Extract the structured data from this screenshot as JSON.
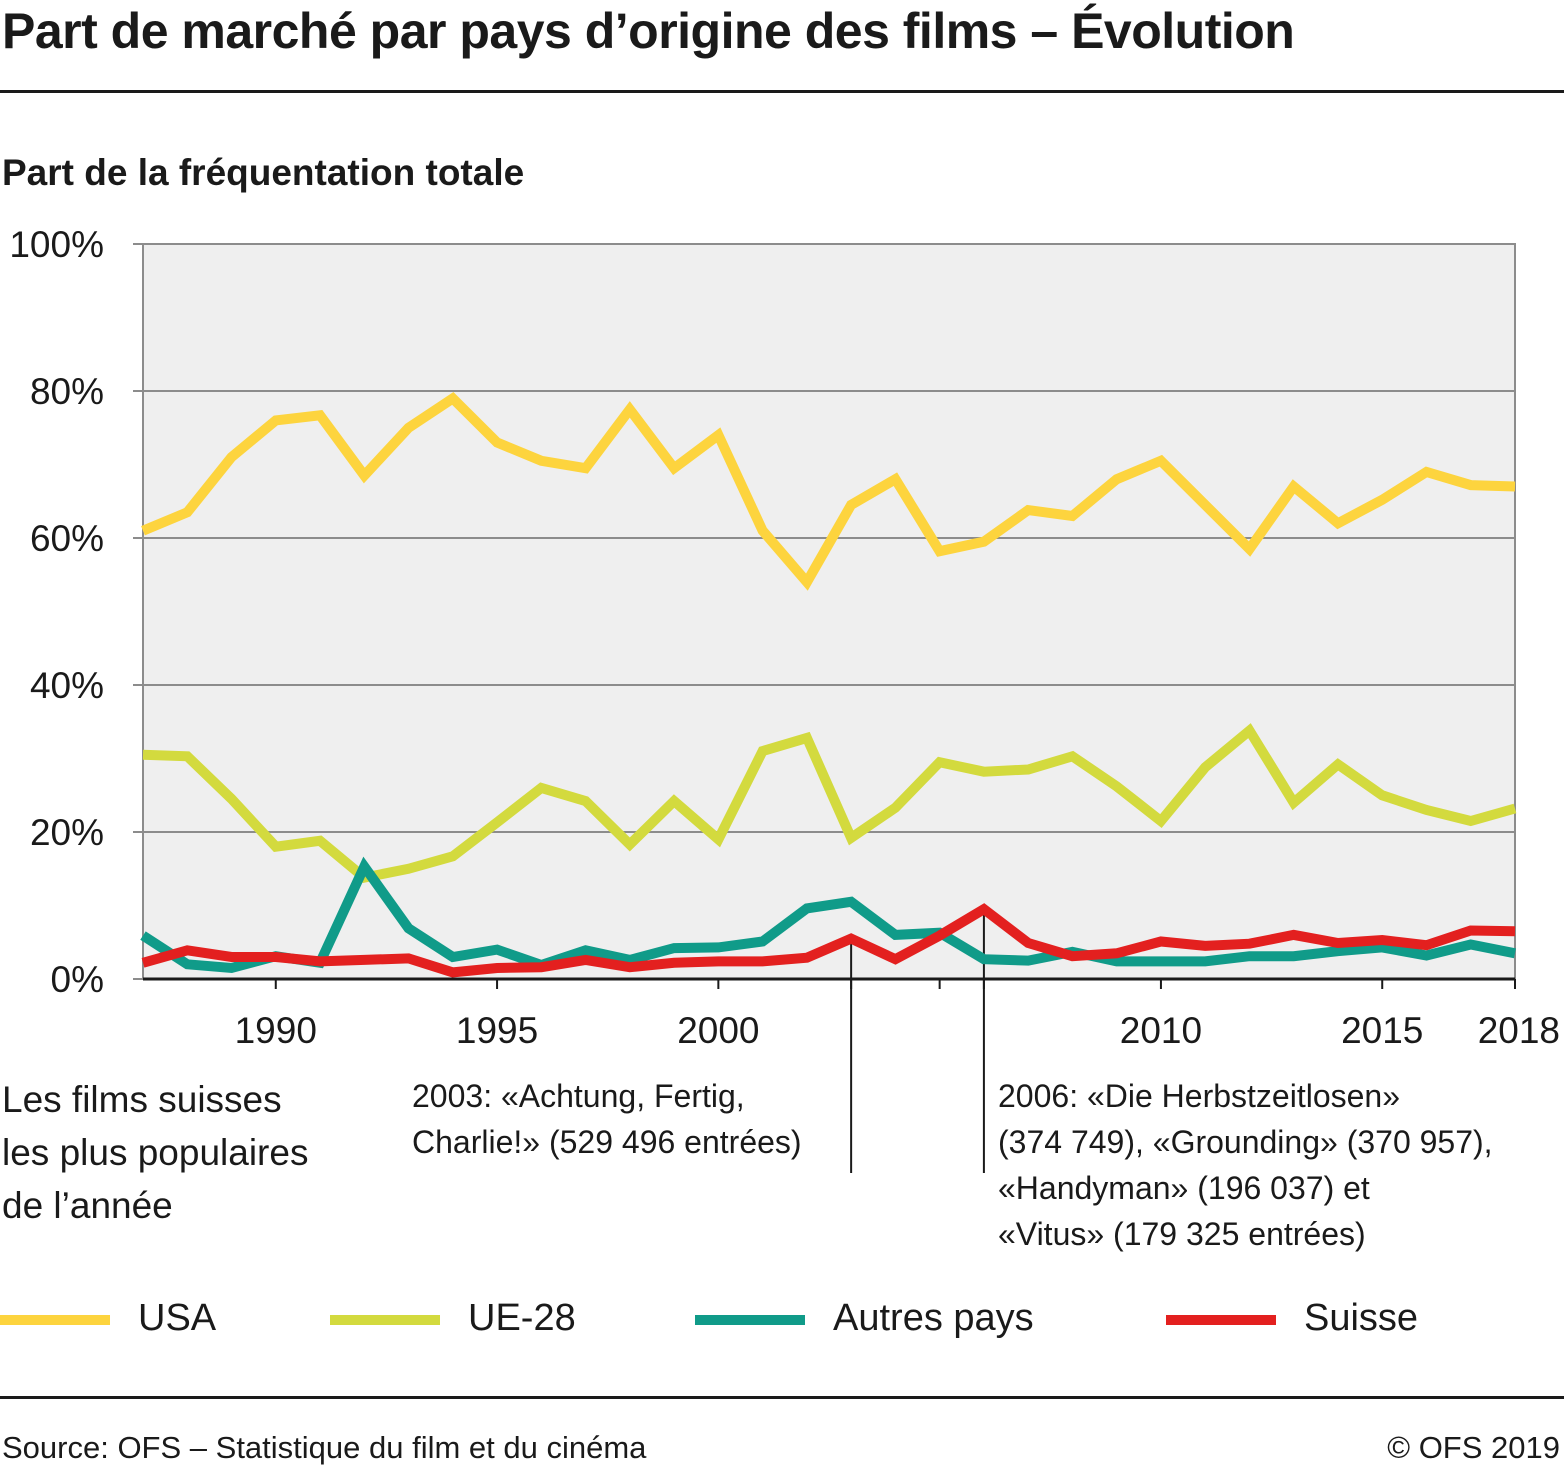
{
  "header": {
    "title": "Part de marché par pays d’origine des films – Évolution",
    "subtitle": "Part de la fréquentation totale"
  },
  "annotations": {
    "left_note_lines": [
      "Les films suisses",
      "les plus populaires",
      "de l’année"
    ],
    "a2003_lines": [
      "2003: «Achtung, Fertig,",
      "Charlie!» (529 496 entrées)"
    ],
    "a2006_lines": [
      "2006: «Die Herbstzeitlosen»",
      "(374 749), «Grounding» (370 957),",
      "«Handyman» (196 037) et",
      "«Vitus»  (179 325 entrées)"
    ]
  },
  "legend": [
    {
      "label": "USA",
      "color": "#fdd43e"
    },
    {
      "label": "UE-28",
      "color": "#d3da3e"
    },
    {
      "label": "Autres pays",
      "color": "#109b89"
    },
    {
      "label": "Suisse",
      "color": "#e3201f"
    }
  ],
  "footer": {
    "source": "Source: OFS – Statistique du film et du cinéma",
    "copyright": "© OFS 2019"
  },
  "chart_data": {
    "type": "line",
    "title": "Part de marché par pays d’origine des films – Évolution",
    "ylabel": "Part de la fréquentation totale",
    "x": [
      1987,
      1988,
      1989,
      1990,
      1991,
      1992,
      1993,
      1994,
      1995,
      1996,
      1997,
      1998,
      1999,
      2000,
      2001,
      2002,
      2003,
      2004,
      2005,
      2006,
      2007,
      2008,
      2009,
      2010,
      2011,
      2012,
      2013,
      2014,
      2015,
      2016,
      2017,
      2018
    ],
    "xlim": [
      1987,
      2018
    ],
    "ylim": [
      0,
      100
    ],
    "y_ticks": [
      0,
      20,
      40,
      60,
      80,
      100
    ],
    "y_tick_labels": [
      "0%",
      "20%",
      "40%",
      "60%",
      "80%",
      "100%"
    ],
    "x_tick_labels": [
      {
        "x": 1990,
        "label": "1990"
      },
      {
        "x": 1995,
        "label": "1995"
      },
      {
        "x": 2000,
        "label": "2000"
      },
      {
        "x": 2010,
        "label": "2010"
      },
      {
        "x": 2015,
        "label": "2015"
      },
      {
        "x": 2018,
        "label": "2018"
      }
    ],
    "minor_ticks": [
      2003,
      2005,
      2006
    ],
    "annotation_years": [
      2003,
      2006
    ],
    "grid": true,
    "legend_position": "bottom",
    "series": [
      {
        "name": "USA",
        "color": "#fdd43e",
        "values": [
          61,
          63.5,
          71,
          76,
          76.7,
          68.5,
          75,
          79,
          73,
          70.5,
          69.5,
          77.5,
          69.5,
          74,
          61,
          54,
          64.5,
          68,
          58.2,
          59.5,
          63.8,
          63,
          68,
          70.5,
          64.5,
          58.5,
          67,
          62,
          65.2,
          69,
          67.2,
          67
        ]
      },
      {
        "name": "UE-28",
        "color": "#d3da3e",
        "values": [
          30.5,
          30.3,
          24.5,
          18,
          18.8,
          13.8,
          15,
          16.7,
          21.3,
          26,
          24.2,
          18.3,
          24.2,
          19,
          31,
          32.8,
          19.2,
          23.3,
          29.5,
          28.2,
          28.5,
          30.3,
          26.2,
          21.5,
          28.8,
          33.8,
          24,
          29.2,
          25,
          23,
          21.5,
          23.2
        ]
      },
      {
        "name": "Autres pays",
        "color": "#109b89",
        "values": [
          5.9,
          2,
          1.5,
          3.1,
          2.2,
          15.3,
          6.9,
          3,
          4,
          1.9,
          3.9,
          2.6,
          4.2,
          4.3,
          5.1,
          9.6,
          10.5,
          6,
          6.3,
          2.7,
          2.5,
          3.7,
          2.4,
          2.4,
          2.4,
          3.1,
          3.1,
          3.8,
          4.3,
          3.2,
          4.7,
          3.5
        ]
      },
      {
        "name": "Suisse",
        "color": "#e3201f",
        "values": [
          2.2,
          3.9,
          3,
          3,
          2.4,
          2.6,
          2.8,
          0.9,
          1.5,
          1.6,
          2.6,
          1.6,
          2.2,
          2.4,
          2.4,
          2.9,
          5.5,
          2.7,
          5.9,
          9.5,
          4.9,
          3.1,
          3.5,
          5.1,
          4.5,
          4.8,
          6,
          4.9,
          5.3,
          4.6,
          6.6,
          6.5
        ]
      }
    ]
  }
}
